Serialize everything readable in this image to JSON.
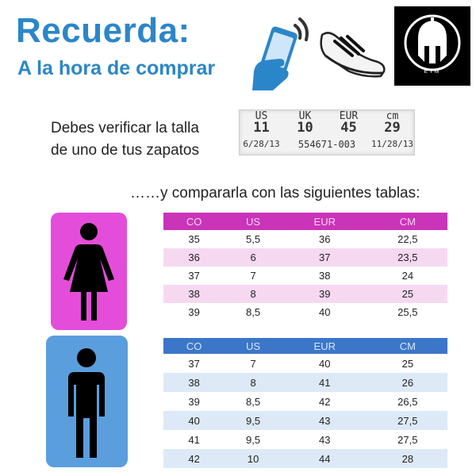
{
  "header": {
    "title": "Recuerda:",
    "subtitle": "A la hora de comprar"
  },
  "logo": {
    "text": "EYM"
  },
  "instruction": {
    "line1": "Debes verificar la talla",
    "line2": "de uno de tus zapatos",
    "compare": "……y compararla con las siguientes tablas:"
  },
  "shoe_tag": {
    "labels": [
      "US",
      "UK",
      "EUR",
      "cm"
    ],
    "values": [
      "11",
      "10",
      "45",
      "29"
    ],
    "footer": [
      "6/28/13",
      "554671-003",
      "11/28/13"
    ]
  },
  "women_table": {
    "headers": [
      "CO",
      "US",
      "EUR",
      "CM"
    ],
    "rows": [
      [
        "35",
        "5,5",
        "36",
        "22,5"
      ],
      [
        "36",
        "6",
        "37",
        "23,5"
      ],
      [
        "37",
        "7",
        "38",
        "24"
      ],
      [
        "38",
        "8",
        "39",
        "25"
      ],
      [
        "39",
        "8,5",
        "40",
        "25,5"
      ]
    ]
  },
  "men_table": {
    "headers": [
      "CO",
      "US",
      "EUR",
      "CM"
    ],
    "rows": [
      [
        "37",
        "7",
        "40",
        "25"
      ],
      [
        "38",
        "8",
        "41",
        "26"
      ],
      [
        "39",
        "8,5",
        "42",
        "26,5"
      ],
      [
        "40",
        "9,5",
        "43",
        "27,5"
      ],
      [
        "41",
        "9,5",
        "43",
        "27,5"
      ],
      [
        "42",
        "10",
        "44",
        "28"
      ]
    ]
  },
  "colors": {
    "brand_blue": "#2b86c9",
    "women_accent": "#c934b8",
    "women_card": "#e44dd9",
    "men_accent": "#3b76c8",
    "men_card": "#5a9ede"
  }
}
